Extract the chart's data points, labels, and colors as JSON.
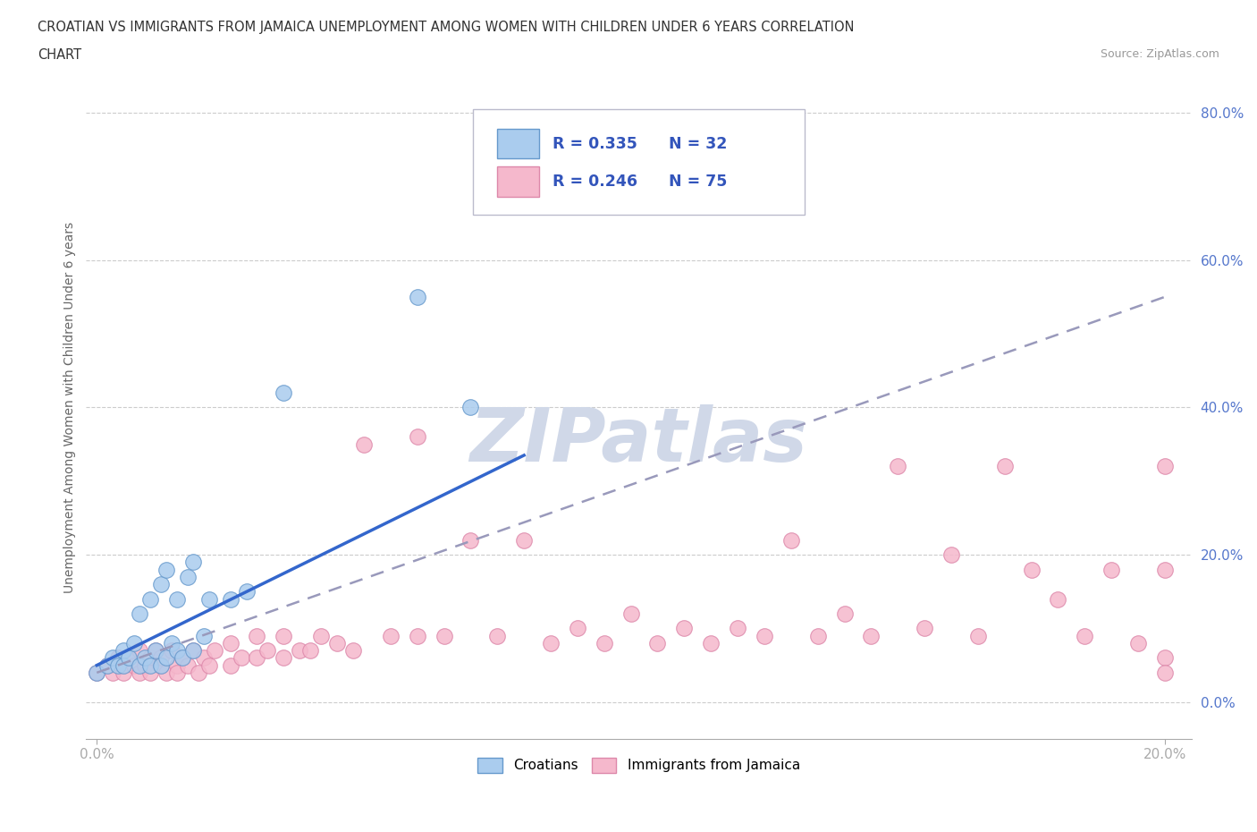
{
  "title_line1": "CROATIAN VS IMMIGRANTS FROM JAMAICA UNEMPLOYMENT AMONG WOMEN WITH CHILDREN UNDER 6 YEARS CORRELATION",
  "title_line2": "CHART",
  "source": "Source: ZipAtlas.com",
  "ylabel": "Unemployment Among Women with Children Under 6 years",
  "xlim": [
    -0.002,
    0.205
  ],
  "ylim": [
    -0.05,
    0.85
  ],
  "ytick_values": [
    0.0,
    0.2,
    0.4,
    0.6,
    0.8
  ],
  "background_color": "#ffffff",
  "grid_color": "#cccccc",
  "legend1_R": "0.335",
  "legend1_N": "32",
  "legend2_R": "0.246",
  "legend2_N": "75",
  "legend_text_color": "#3355bb",
  "croatian_color": "#aaccee",
  "croatian_edge": "#6699cc",
  "jamaican_color": "#f5b8cc",
  "jamaican_edge": "#dd88aa",
  "croatian_line_color": "#3366cc",
  "jamaican_line_color": "#9999bb",
  "watermark_color": "#d0d8e8",
  "croatian_x": [
    0.0,
    0.002,
    0.003,
    0.004,
    0.005,
    0.005,
    0.006,
    0.007,
    0.008,
    0.008,
    0.009,
    0.01,
    0.01,
    0.011,
    0.012,
    0.012,
    0.013,
    0.013,
    0.014,
    0.015,
    0.015,
    0.016,
    0.017,
    0.018,
    0.018,
    0.02,
    0.021,
    0.025,
    0.028,
    0.035,
    0.06,
    0.07
  ],
  "croatian_y": [
    0.04,
    0.05,
    0.06,
    0.05,
    0.07,
    0.05,
    0.06,
    0.08,
    0.05,
    0.12,
    0.06,
    0.05,
    0.14,
    0.07,
    0.05,
    0.16,
    0.06,
    0.18,
    0.08,
    0.07,
    0.14,
    0.06,
    0.17,
    0.07,
    0.19,
    0.09,
    0.14,
    0.14,
    0.15,
    0.42,
    0.55,
    0.4
  ],
  "jamaican_x": [
    0.0,
    0.002,
    0.003,
    0.004,
    0.005,
    0.005,
    0.006,
    0.007,
    0.008,
    0.008,
    0.009,
    0.01,
    0.01,
    0.011,
    0.012,
    0.012,
    0.013,
    0.014,
    0.015,
    0.015,
    0.016,
    0.017,
    0.018,
    0.019,
    0.02,
    0.021,
    0.022,
    0.025,
    0.025,
    0.027,
    0.03,
    0.03,
    0.032,
    0.035,
    0.035,
    0.038,
    0.04,
    0.042,
    0.045,
    0.048,
    0.05,
    0.055,
    0.06,
    0.06,
    0.065,
    0.07,
    0.075,
    0.08,
    0.085,
    0.09,
    0.095,
    0.1,
    0.105,
    0.11,
    0.115,
    0.12,
    0.125,
    0.13,
    0.135,
    0.14,
    0.145,
    0.15,
    0.155,
    0.16,
    0.165,
    0.17,
    0.175,
    0.18,
    0.185,
    0.19,
    0.195,
    0.2,
    0.2,
    0.2,
    0.2
  ],
  "jamaican_y": [
    0.04,
    0.05,
    0.04,
    0.06,
    0.05,
    0.04,
    0.06,
    0.05,
    0.07,
    0.04,
    0.05,
    0.06,
    0.04,
    0.07,
    0.05,
    0.06,
    0.04,
    0.07,
    0.05,
    0.04,
    0.06,
    0.05,
    0.07,
    0.04,
    0.06,
    0.05,
    0.07,
    0.05,
    0.08,
    0.06,
    0.06,
    0.09,
    0.07,
    0.06,
    0.09,
    0.07,
    0.07,
    0.09,
    0.08,
    0.07,
    0.35,
    0.09,
    0.09,
    0.36,
    0.09,
    0.22,
    0.09,
    0.22,
    0.08,
    0.1,
    0.08,
    0.12,
    0.08,
    0.1,
    0.08,
    0.1,
    0.09,
    0.22,
    0.09,
    0.12,
    0.09,
    0.32,
    0.1,
    0.2,
    0.09,
    0.32,
    0.18,
    0.14,
    0.09,
    0.18,
    0.08,
    0.32,
    0.18,
    0.06,
    0.04
  ],
  "cro_trend_x0": 0.0,
  "cro_trend_x1": 0.08,
  "cro_trend_y0": 0.05,
  "cro_trend_y1": 0.335,
  "jam_trend_x0": 0.0,
  "jam_trend_x1": 0.2,
  "jam_trend_y0": 0.04,
  "jam_trend_y1": 0.55
}
